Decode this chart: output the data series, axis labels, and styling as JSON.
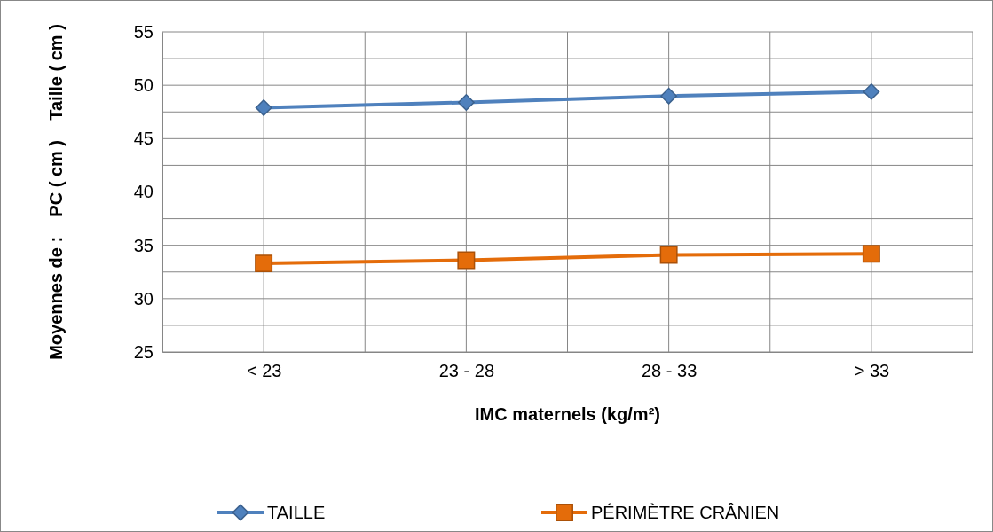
{
  "chart_data": {
    "type": "line",
    "xlabel": "IMC maternels (kg/m²)",
    "ylabel": "Moyennes de :    PC ( cm )    Taille ( cm )",
    "categories": [
      "< 23",
      "23 - 28",
      "28 - 33",
      "> 33"
    ],
    "series": [
      {
        "name": "TAILLE",
        "color": "#4f81bd",
        "marker": "diamond",
        "values": [
          47.9,
          48.4,
          49.0,
          49.4
        ]
      },
      {
        "name": "PÉRIMÈTRE CRÂNIEN",
        "color": "#e46c0a",
        "marker": "square",
        "values": [
          33.3,
          33.6,
          34.1,
          34.2
        ]
      }
    ],
    "ylim": [
      25,
      55
    ],
    "yticks": [
      25,
      {
        "value": 27.5,
        "label": null
      },
      30,
      {
        "value": 32.5,
        "label": null
      },
      35,
      {
        "value": 37.5,
        "label": null
      },
      40,
      {
        "value": 42.5,
        "label": null
      },
      45,
      {
        "value": 47.5,
        "label": null
      },
      50,
      {
        "value": 52.5,
        "label": null
      },
      55
    ],
    "grid": true,
    "legend": "bottom",
    "line_style": "solid"
  }
}
